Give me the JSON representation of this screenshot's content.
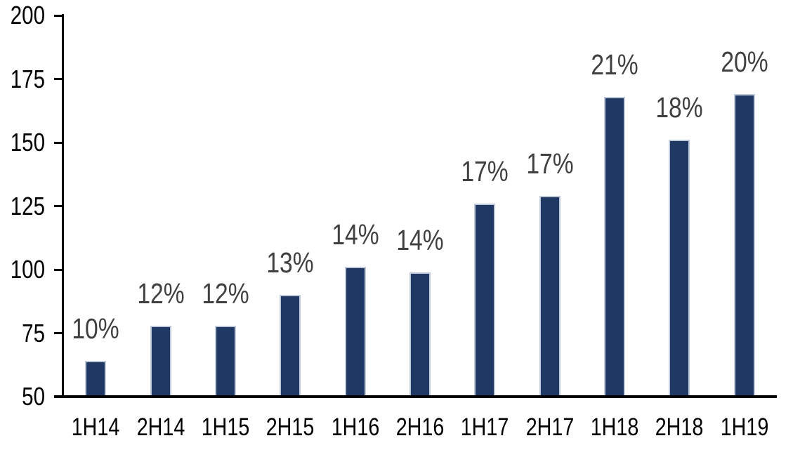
{
  "chart_data": {
    "type": "bar",
    "title": "",
    "xlabel": "",
    "ylabel": "",
    "categories": [
      "1H14",
      "2H14",
      "1H15",
      "2H15",
      "1H16",
      "2H16",
      "1H17",
      "2H17",
      "1H18",
      "2H18",
      "1H19"
    ],
    "values": [
      64,
      78,
      78,
      90,
      101,
      99,
      126,
      129,
      168,
      151,
      169
    ],
    "bar_labels": [
      "10%",
      "12%",
      "12%",
      "13%",
      "14%",
      "14%",
      "17%",
      "17%",
      "21%",
      "18%",
      "20%"
    ],
    "ylim": [
      50,
      200
    ],
    "yticks": [
      50,
      75,
      100,
      125,
      150,
      175,
      200
    ],
    "grid": false,
    "legend": null,
    "colors": {
      "bar_fill": "#203864",
      "bar_border": "#BFC9D9",
      "value_label": "#404040",
      "axis_text": "#000000",
      "axis_line": "#000000",
      "background": "#ffffff"
    }
  }
}
